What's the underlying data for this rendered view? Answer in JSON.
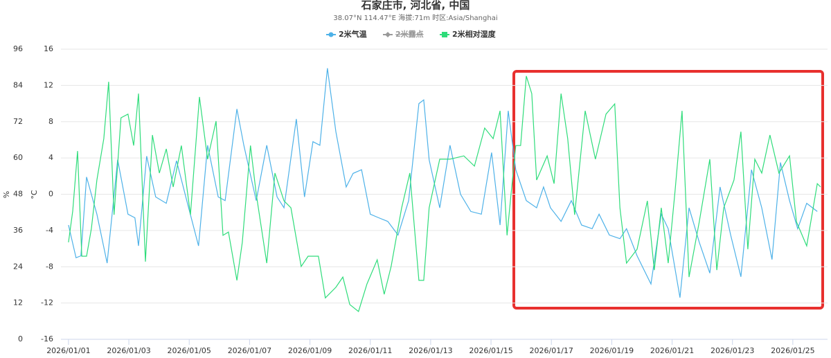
{
  "chart_data": {
    "type": "line",
    "title": "石家庄市, 河北省, 中国",
    "subtitle": "38.07°N 114.47°E 海拔:71m 时区:Asia/Shanghai",
    "ylabel": "%",
    "y2label": "°C",
    "grid": true,
    "legend": "top",
    "xlim": [
      -0.25,
      25.15
    ],
    "xticks": [
      {
        "value": 0,
        "label": "2026/01/01"
      },
      {
        "value": 2,
        "label": "2026/01/03"
      },
      {
        "value": 4,
        "label": "2026/01/05"
      },
      {
        "value": 6,
        "label": "2026/01/07"
      },
      {
        "value": 8,
        "label": "2026/01/09"
      },
      {
        "value": 10,
        "label": "2026/01/11"
      },
      {
        "value": 12,
        "label": "2026/01/13"
      },
      {
        "value": 14,
        "label": "2026/01/15"
      },
      {
        "value": 16,
        "label": "2026/01/17"
      },
      {
        "value": 18,
        "label": "2026/01/19"
      },
      {
        "value": 20,
        "label": "2026/01/21"
      },
      {
        "value": 22,
        "label": "2026/01/23"
      },
      {
        "value": 24,
        "label": "2026/01/25"
      }
    ],
    "ylim": [
      0,
      96
    ],
    "yticks": [
      0,
      12,
      24,
      36,
      48,
      60,
      72,
      84,
      96
    ],
    "y2lim": [
      -16,
      16
    ],
    "y2ticks": [
      -16,
      -12,
      -8,
      -4,
      0,
      4,
      8,
      12,
      16
    ],
    "series": [
      {
        "name": "2米气温",
        "color": "#4db1e8",
        "axis": "y2",
        "visible": true,
        "x": [
          0.0,
          0.25,
          0.41,
          0.6,
          0.94,
          1.28,
          1.63,
          1.97,
          2.2,
          2.32,
          2.59,
          2.89,
          3.24,
          3.58,
          3.92,
          4.31,
          4.61,
          4.96,
          5.19,
          5.58,
          5.81,
          6.22,
          6.57,
          6.91,
          7.14,
          7.55,
          7.82,
          8.1,
          8.33,
          8.58,
          8.86,
          9.2,
          9.43,
          9.71,
          10.0,
          10.28,
          10.58,
          10.92,
          11.27,
          11.61,
          11.77,
          11.95,
          12.3,
          12.64,
          12.99,
          13.33,
          13.68,
          14.02,
          14.3,
          14.57,
          14.82,
          15.17,
          15.51,
          15.74,
          15.97,
          16.32,
          16.66,
          17.0,
          17.35,
          17.58,
          17.92,
          18.27,
          18.49,
          18.84,
          19.3,
          19.64,
          19.87,
          20.26,
          20.56,
          20.9,
          21.25,
          21.59,
          21.94,
          22.28,
          22.63,
          22.97,
          23.31,
          23.59,
          23.89,
          24.16,
          24.46,
          24.81
        ],
        "values": [
          -3.4,
          -7.0,
          -6.8,
          1.9,
          -2.2,
          -7.6,
          3.8,
          -2.2,
          -2.6,
          -5.7,
          4.2,
          -0.3,
          -1.0,
          3.7,
          -0.7,
          -5.7,
          5.4,
          -0.3,
          -0.7,
          9.4,
          5.4,
          -0.7,
          5.4,
          -0.3,
          -1.5,
          8.3,
          -0.3,
          5.8,
          5.4,
          13.9,
          6.9,
          0.8,
          2.3,
          2.7,
          -2.2,
          -2.6,
          -3.0,
          -4.5,
          -0.7,
          10.0,
          10.4,
          3.8,
          -1.5,
          5.4,
          0.0,
          -1.9,
          -2.2,
          4.6,
          -3.4,
          9.2,
          2.7,
          -0.7,
          -1.5,
          0.8,
          -1.5,
          -3.0,
          -0.7,
          -3.4,
          -3.8,
          -2.2,
          -4.5,
          -4.9,
          -3.8,
          -6.8,
          -9.9,
          -2.2,
          -3.8,
          -11.4,
          -1.5,
          -5.3,
          -8.7,
          0.8,
          -4.5,
          -9.1,
          2.7,
          -1.5,
          -7.2,
          3.5,
          -0.7,
          -3.8,
          -1.0,
          -1.9
        ]
      },
      {
        "name": "2米露点",
        "color": "#555555",
        "visible": false
      },
      {
        "name": "2米相对湿度",
        "color": "#2edc7a",
        "axis": "y",
        "visible": true,
        "x": [
          0.0,
          0.14,
          0.3,
          0.44,
          0.6,
          0.76,
          0.94,
          1.17,
          1.33,
          1.51,
          1.74,
          1.97,
          2.16,
          2.32,
          2.55,
          2.78,
          3.01,
          3.24,
          3.47,
          3.74,
          4.04,
          4.34,
          4.61,
          4.89,
          5.12,
          5.3,
          5.58,
          5.76,
          6.03,
          6.22,
          6.57,
          6.84,
          7.14,
          7.37,
          7.71,
          7.94,
          8.28,
          8.51,
          8.86,
          9.09,
          9.32,
          9.61,
          9.89,
          10.23,
          10.46,
          10.69,
          11.04,
          11.31,
          11.61,
          11.77,
          11.95,
          12.3,
          12.64,
          13.1,
          13.45,
          13.79,
          14.07,
          14.3,
          14.53,
          14.82,
          14.98,
          15.17,
          15.35,
          15.51,
          15.86,
          16.09,
          16.32,
          16.54,
          16.77,
          17.12,
          17.46,
          17.81,
          18.1,
          18.27,
          18.49,
          18.84,
          19.18,
          19.41,
          19.64,
          19.87,
          20.1,
          20.33,
          20.56,
          20.9,
          21.25,
          21.48,
          21.71,
          22.05,
          22.28,
          22.51,
          22.74,
          22.97,
          23.24,
          23.54,
          23.89,
          24.12,
          24.46,
          24.81,
          24.92
        ],
        "values": [
          32.1,
          42.4,
          62.3,
          27.5,
          27.5,
          36.7,
          52.7,
          66.4,
          85.2,
          41.2,
          73.3,
          74.5,
          64.1,
          81.3,
          25.7,
          67.6,
          55.0,
          63.0,
          50.4,
          64.1,
          41.2,
          80.2,
          59.6,
          72.2,
          34.4,
          35.5,
          19.5,
          32.1,
          64.1,
          48.1,
          25.2,
          55.0,
          45.8,
          43.5,
          24.1,
          27.5,
          27.5,
          13.7,
          17.2,
          20.6,
          11.5,
          9.2,
          18.3,
          26.3,
          14.9,
          24.1,
          43.5,
          55.0,
          19.5,
          19.5,
          43.5,
          59.6,
          59.6,
          60.7,
          57.3,
          69.9,
          66.4,
          75.6,
          34.4,
          64.1,
          64.1,
          87.1,
          81.3,
          52.7,
          60.7,
          51.5,
          81.3,
          66.4,
          41.2,
          75.6,
          59.6,
          74.5,
          77.9,
          43.5,
          25.2,
          29.8,
          45.8,
          22.9,
          43.5,
          25.2,
          49.3,
          75.6,
          20.6,
          38.9,
          59.6,
          22.9,
          43.5,
          52.7,
          68.7,
          29.8,
          59.6,
          55.0,
          67.6,
          55.0,
          60.7,
          38.9,
          30.9,
          51.5,
          50.4
        ]
      }
    ]
  }
}
